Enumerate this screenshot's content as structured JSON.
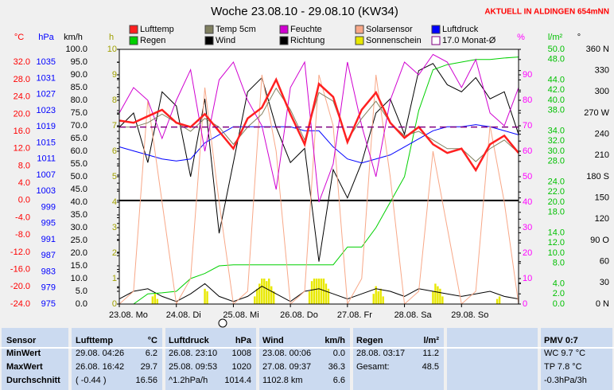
{
  "chart_data": {
    "type": "line",
    "title": "Woche 23.08.10 - 29.08.10 (KW34)",
    "subtitle": "AKTUELL IN ALDINGEN 654mNN",
    "xlim": [
      0,
      168
    ],
    "xticks": [
      {
        "value": 0,
        "label": "23.08. Mo"
      },
      {
        "value": 24,
        "label": "24.08. Di"
      },
      {
        "value": 48,
        "label": "25.08. Mi"
      },
      {
        "value": 72,
        "label": "26.08. Do"
      },
      {
        "value": 96,
        "label": "27.08. Fr"
      },
      {
        "value": 120,
        "label": "28.08. Sa"
      },
      {
        "value": 144,
        "label": "29.08. So"
      }
    ],
    "x": [
      0,
      6,
      12,
      18,
      24,
      30,
      36,
      42,
      48,
      54,
      60,
      66,
      72,
      78,
      84,
      90,
      96,
      102,
      108,
      114,
      120,
      126,
      132,
      138,
      144,
      150,
      156,
      162,
      168
    ],
    "zero_line": true,
    "axes": [
      {
        "id": "temp",
        "label": "°C",
        "color": "#ff0000",
        "lim": [
          -24,
          35
        ],
        "ticks": [
          {
            "value": 32,
            "label": "32.0"
          },
          {
            "value": 28,
            "label": "28.0"
          },
          {
            "value": 24,
            "label": "24.0"
          },
          {
            "value": 20,
            "label": "20.0"
          },
          {
            "value": 16,
            "label": "16.0"
          },
          {
            "value": 12,
            "label": "12.0"
          },
          {
            "value": 8,
            "label": "8.0"
          },
          {
            "value": 4,
            "label": "4.0"
          },
          {
            "value": 0,
            "label": "0.0"
          },
          {
            "value": -4,
            "label": "-4.0"
          },
          {
            "value": -8,
            "label": "-8.0"
          },
          {
            "value": -12,
            "label": "-12.0"
          },
          {
            "value": -16,
            "label": "-16.0"
          },
          {
            "value": -20,
            "label": "-20.0"
          },
          {
            "value": -24,
            "label": "-24.0"
          }
        ]
      },
      {
        "id": "pressure",
        "label": "hPa",
        "color": "#0000ff",
        "lim": [
          975,
          1038.2
        ],
        "ticks": [
          1035,
          1031,
          1027,
          1023,
          1019,
          1015,
          1011,
          1007,
          1003,
          999,
          995,
          991,
          987,
          983,
          979,
          975
        ]
      },
      {
        "id": "wind",
        "label": "km/h",
        "color": "#000000",
        "lim": [
          0,
          100
        ],
        "ticks": [
          {
            "value": 100,
            "label": "100.0"
          },
          {
            "value": 95,
            "label": "95.0"
          },
          {
            "value": 90,
            "label": "90.0"
          },
          {
            "value": 85,
            "label": "85.0"
          },
          {
            "value": 80,
            "label": "80.0"
          },
          {
            "value": 75,
            "label": "75.0"
          },
          {
            "value": 70,
            "label": "70.0"
          },
          {
            "value": 65,
            "label": "65.0"
          },
          {
            "value": 60,
            "label": "60.0"
          },
          {
            "value": 55,
            "label": "55.0"
          },
          {
            "value": 50,
            "label": "50.0"
          },
          {
            "value": 45,
            "label": "45.0"
          },
          {
            "value": 40,
            "label": "40.0"
          },
          {
            "value": 35,
            "label": "35.0"
          },
          {
            "value": 30,
            "label": "30.0"
          },
          {
            "value": 25,
            "label": "25.0"
          },
          {
            "value": 20,
            "label": "20.0"
          },
          {
            "value": 15,
            "label": "15.0"
          },
          {
            "value": 10,
            "label": "10.0"
          },
          {
            "value": 5,
            "label": "5.0"
          },
          {
            "value": 0,
            "label": "0.0"
          }
        ]
      },
      {
        "id": "sun",
        "label": "h",
        "color": "#a0a000",
        "lim": [
          0,
          10
        ],
        "ticks": [
          10,
          9,
          8,
          7,
          6,
          5,
          4,
          3,
          2,
          1,
          0
        ]
      },
      {
        "id": "hum",
        "label": "%",
        "color": "#ff00ff",
        "lim": [
          0,
          100
        ],
        "ticks": [
          90,
          80,
          70,
          60,
          50,
          40,
          30,
          20,
          10,
          0
        ]
      },
      {
        "id": "rain",
        "label": "l/m²",
        "color": "#00c000",
        "lim": [
          0,
          50
        ],
        "ticks": [
          {
            "value": 50,
            "label": "50.0"
          },
          {
            "value": 48,
            "label": "48.0"
          },
          {
            "value": 44,
            "label": "44.0"
          },
          {
            "value": 42,
            "label": "42.0"
          },
          {
            "value": 40,
            "label": "40.0"
          },
          {
            "value": 38,
            "label": "38.0"
          },
          {
            "value": 34,
            "label": "34.0"
          },
          {
            "value": 32,
            "label": "32.0"
          },
          {
            "value": 30,
            "label": "30.0"
          },
          {
            "value": 28,
            "label": "28.0"
          },
          {
            "value": 24,
            "label": "24.0"
          },
          {
            "value": 22,
            "label": "22.0"
          },
          {
            "value": 20,
            "label": "20.0"
          },
          {
            "value": 18,
            "label": "18.0"
          },
          {
            "value": 14,
            "label": "14.0"
          },
          {
            "value": 12,
            "label": "12.0"
          },
          {
            "value": 10,
            "label": "10.0"
          },
          {
            "value": 8,
            "label": "8.0"
          },
          {
            "value": 4,
            "label": "4.0"
          },
          {
            "value": 2,
            "label": "2.0"
          },
          {
            "value": 0,
            "label": "0.0"
          }
        ]
      },
      {
        "id": "dir",
        "label": "°",
        "color": "#000000",
        "lim": [
          0,
          360
        ],
        "ticks": [
          {
            "value": 360,
            "label": "360 N"
          },
          330,
          300,
          {
            "value": 270,
            "label": "270 W"
          },
          240,
          210,
          {
            "value": 180,
            "label": "180 S"
          },
          150,
          120,
          {
            "value": 90,
            "label": "90 O"
          },
          60,
          30,
          {
            "value": 0,
            "label": "0 N"
          }
        ]
      }
    ],
    "series": [
      {
        "name": "Lufttemp",
        "color": "#ff2020",
        "axis": "temp",
        "values": [
          18.5,
          18,
          19.5,
          21,
          18,
          17,
          20,
          16,
          12,
          19,
          21.5,
          28,
          20,
          13,
          27,
          24,
          13.5,
          21,
          25,
          18,
          14.5,
          17,
          13,
          11,
          12,
          7,
          13,
          15,
          11
        ]
      },
      {
        "name": "Temp 5cm",
        "color": "#808060",
        "axis": "temp",
        "values": [
          17,
          17,
          18,
          20,
          18,
          16,
          19,
          17,
          13,
          17,
          20,
          26,
          21,
          14,
          25,
          23,
          14,
          19,
          23,
          18,
          15,
          16,
          14,
          12,
          12,
          9,
          12,
          14,
          11
        ]
      },
      {
        "name": "Feuchte",
        "color": "#d000d0",
        "axis": "hum",
        "values": [
          75,
          85,
          80,
          65,
          80,
          92,
          60,
          88,
          95,
          80,
          70,
          45,
          85,
          95,
          40,
          55,
          95,
          70,
          50,
          80,
          95,
          90,
          98,
          95,
          85,
          96,
          75,
          70,
          85
        ]
      },
      {
        "name": "Solarsensor",
        "color": "#f8a888",
        "axis": "hum",
        "values": [
          0,
          5,
          80,
          40,
          0,
          10,
          85,
          40,
          0,
          5,
          90,
          60,
          0,
          5,
          90,
          70,
          0,
          10,
          90,
          50,
          0,
          5,
          60,
          30,
          0,
          5,
          70,
          40,
          0
        ]
      },
      {
        "name": "Luftdruck",
        "color": "#0000ff",
        "axis": "pressure",
        "values": [
          1014,
          1013,
          1012,
          1011,
          1010.5,
          1011,
          1015,
          1017,
          1019,
          1019,
          1019,
          1019,
          1019,
          1018,
          1018,
          1014,
          1011,
          1010,
          1011,
          1012,
          1014,
          1016,
          1018,
          1019,
          1019,
          1019.5,
          1019,
          1018,
          1017
        ]
      },
      {
        "name": "Regen",
        "color": "#00d000",
        "axis": "rain",
        "values": [
          0,
          0,
          2,
          2.2,
          2.5,
          5,
          6,
          7.5,
          7.7,
          7.7,
          7.7,
          7.7,
          7.7,
          7.7,
          7.7,
          7.7,
          11.2,
          11.2,
          15,
          20,
          25,
          38,
          46,
          47,
          47.5,
          48,
          48,
          48.3,
          48.5
        ]
      },
      {
        "name": "Wind",
        "color": "#000000",
        "axis": "wind",
        "values": [
          2,
          5,
          6,
          3,
          1,
          4,
          8,
          3,
          1,
          3,
          7,
          4,
          1,
          5,
          6,
          4,
          2,
          4,
          6,
          5,
          3,
          6,
          5,
          4,
          3,
          4,
          5,
          3,
          2
        ]
      },
      {
        "name": "Richtung",
        "color": "#000000",
        "axis": "dir",
        "values": [
          250,
          270,
          200,
          300,
          280,
          180,
          290,
          100,
          200,
          300,
          320,
          250,
          200,
          220,
          60,
          190,
          150,
          200,
          270,
          290,
          240,
          330,
          340,
          310,
          300,
          320,
          290,
          300,
          240
        ]
      },
      {
        "name": "Sonnenschein",
        "color": "#e8e800",
        "axis": "sun",
        "style": "bar",
        "x": [
          14,
          15,
          16,
          36,
          37,
          57,
          58,
          59,
          60,
          61,
          62,
          63,
          64,
          65,
          80,
          81,
          82,
          83,
          84,
          85,
          86,
          87,
          88,
          107,
          108,
          109,
          110,
          111,
          132,
          133,
          134,
          135,
          136,
          159,
          160
        ],
        "values": [
          0.3,
          0.4,
          0.2,
          0.6,
          0.5,
          0.3,
          0.6,
          0.8,
          1,
          1,
          0.9,
          1,
          0.7,
          0.5,
          0.5,
          0.9,
          1,
          1,
          1,
          1,
          1,
          0.8,
          0.6,
          0.4,
          0.7,
          0.5,
          0.6,
          0.3,
          0.5,
          0.8,
          0.7,
          0.6,
          0.3,
          0.2,
          0.3
        ]
      }
    ],
    "reference_line": {
      "name": "17.0 Monat-Ø",
      "value": 17,
      "axis": "temp",
      "color": "#800080"
    }
  },
  "table": {
    "header": [
      "Sensor",
      "Lufttemp",
      "°C",
      "Luftdruck",
      "hPa",
      "Wind",
      "km/h",
      "Regen",
      "l/m²",
      "PMV 0:7"
    ],
    "rows": [
      [
        "MinWert",
        "29.08. 04:26",
        "6.2",
        "26.08. 23:10",
        "1008",
        "23.08. 00:06",
        "0.0",
        "28.08. 03:17",
        "11.2",
        "WC 9.7 °C"
      ],
      [
        "MaxWert",
        "26.08. 16:42",
        "29.7",
        "25.08. 09:53",
        "1020",
        "27.08. 09:37",
        "36.3",
        "Gesamt:",
        "48.5",
        "TP 7.8 °C"
      ],
      [
        "Durchschnitt",
        "( -0.44 )",
        "16.56",
        "^1.2hPa/h",
        "1014.4",
        "1102.8 km",
        "6.6",
        null,
        null,
        "-0.3hPa/3h"
      ]
    ]
  }
}
